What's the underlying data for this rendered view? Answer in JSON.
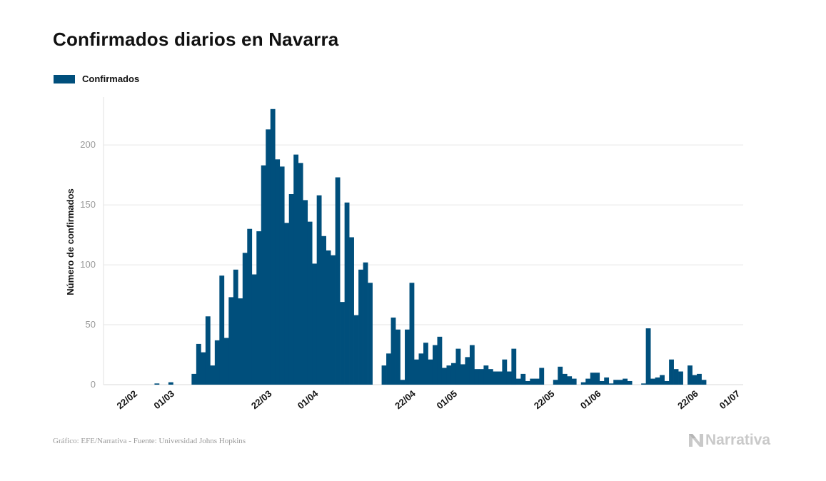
{
  "header": {
    "title": "Confirmados diarios en Navarra"
  },
  "legend": {
    "label": "Confirmados"
  },
  "footer": {
    "source": "Gráfico: EFE/Narrativa - Fuente: Universidad Johns Hopkins"
  },
  "brand": {
    "name": "Narrativa",
    "icon": "narrativa-logo-icon"
  },
  "colors": {
    "bar": "#004f7c",
    "grid": "#e6e6e6",
    "axis_text": "#999999",
    "brand": "#c9c9c9"
  },
  "chart_data": {
    "type": "bar",
    "title": "Confirmados diarios en Navarra",
    "xlabel": "",
    "ylabel": "Número de confirmados",
    "ylim": [
      0,
      240
    ],
    "yticks": [
      0,
      50,
      100,
      150,
      200
    ],
    "grid": true,
    "legend_position": "top-left",
    "x_start": "2020-02-16",
    "x_end": "2020-07-03",
    "xticks": [
      {
        "date": "2020-02-22",
        "label": "22/02"
      },
      {
        "date": "2020-03-01",
        "label": "01/03"
      },
      {
        "date": "2020-03-22",
        "label": "22/03"
      },
      {
        "date": "2020-04-01",
        "label": "01/04"
      },
      {
        "date": "2020-04-22",
        "label": "22/04"
      },
      {
        "date": "2020-05-01",
        "label": "01/05"
      },
      {
        "date": "2020-05-22",
        "label": "22/05"
      },
      {
        "date": "2020-06-01",
        "label": "01/06"
      },
      {
        "date": "2020-06-22",
        "label": "22/06"
      },
      {
        "date": "2020-07-01",
        "label": "01/07"
      }
    ],
    "series": [
      {
        "name": "Confirmados",
        "values": [
          [
            "2020-02-22",
            0
          ],
          [
            "2020-02-23",
            0
          ],
          [
            "2020-02-24",
            0
          ],
          [
            "2020-02-25",
            0
          ],
          [
            "2020-02-26",
            0
          ],
          [
            "2020-02-27",
            1
          ],
          [
            "2020-02-28",
            0
          ],
          [
            "2020-02-29",
            0
          ],
          [
            "2020-03-01",
            2
          ],
          [
            "2020-03-02",
            0
          ],
          [
            "2020-03-03",
            0
          ],
          [
            "2020-03-04",
            0
          ],
          [
            "2020-03-05",
            0
          ],
          [
            "2020-03-06",
            9
          ],
          [
            "2020-03-07",
            34
          ],
          [
            "2020-03-08",
            27
          ],
          [
            "2020-03-09",
            57
          ],
          [
            "2020-03-10",
            16
          ],
          [
            "2020-03-11",
            37
          ],
          [
            "2020-03-12",
            91
          ],
          [
            "2020-03-13",
            39
          ],
          [
            "2020-03-14",
            73
          ],
          [
            "2020-03-15",
            96
          ],
          [
            "2020-03-16",
            72
          ],
          [
            "2020-03-17",
            110
          ],
          [
            "2020-03-18",
            130
          ],
          [
            "2020-03-19",
            92
          ],
          [
            "2020-03-20",
            128
          ],
          [
            "2020-03-21",
            183
          ],
          [
            "2020-03-22",
            213
          ],
          [
            "2020-03-23",
            230
          ],
          [
            "2020-03-24",
            188
          ],
          [
            "2020-03-25",
            182
          ],
          [
            "2020-03-26",
            135
          ],
          [
            "2020-03-27",
            159
          ],
          [
            "2020-03-28",
            192
          ],
          [
            "2020-03-29",
            185
          ],
          [
            "2020-03-30",
            154
          ],
          [
            "2020-03-31",
            136
          ],
          [
            "2020-04-01",
            101
          ],
          [
            "2020-04-02",
            158
          ],
          [
            "2020-04-03",
            124
          ],
          [
            "2020-04-04",
            112
          ],
          [
            "2020-04-05",
            108
          ],
          [
            "2020-04-06",
            173
          ],
          [
            "2020-04-07",
            69
          ],
          [
            "2020-04-08",
            152
          ],
          [
            "2020-04-09",
            123
          ],
          [
            "2020-04-10",
            58
          ],
          [
            "2020-04-11",
            96
          ],
          [
            "2020-04-12",
            102
          ],
          [
            "2020-04-13",
            85
          ],
          [
            "2020-04-16",
            16
          ],
          [
            "2020-04-17",
            26
          ],
          [
            "2020-04-18",
            56
          ],
          [
            "2020-04-19",
            46
          ],
          [
            "2020-04-20",
            4
          ],
          [
            "2020-04-21",
            46
          ],
          [
            "2020-04-22",
            85
          ],
          [
            "2020-04-23",
            21
          ],
          [
            "2020-04-24",
            26
          ],
          [
            "2020-04-25",
            35
          ],
          [
            "2020-04-26",
            21
          ],
          [
            "2020-04-27",
            33
          ],
          [
            "2020-04-28",
            40
          ],
          [
            "2020-04-29",
            14
          ],
          [
            "2020-04-30",
            16
          ],
          [
            "2020-05-01",
            18
          ],
          [
            "2020-05-02",
            30
          ],
          [
            "2020-05-03",
            17
          ],
          [
            "2020-05-04",
            23
          ],
          [
            "2020-05-05",
            33
          ],
          [
            "2020-05-06",
            13
          ],
          [
            "2020-05-07",
            13
          ],
          [
            "2020-05-08",
            16
          ],
          [
            "2020-05-09",
            13
          ],
          [
            "2020-05-10",
            11
          ],
          [
            "2020-05-11",
            11
          ],
          [
            "2020-05-12",
            21
          ],
          [
            "2020-05-13",
            11
          ],
          [
            "2020-05-14",
            30
          ],
          [
            "2020-05-15",
            5
          ],
          [
            "2020-05-16",
            9
          ],
          [
            "2020-05-17",
            3
          ],
          [
            "2020-05-18",
            5
          ],
          [
            "2020-05-19",
            5
          ],
          [
            "2020-05-20",
            14
          ],
          [
            "2020-05-23",
            4
          ],
          [
            "2020-05-24",
            15
          ],
          [
            "2020-05-25",
            9
          ],
          [
            "2020-05-26",
            7
          ],
          [
            "2020-05-27",
            5
          ],
          [
            "2020-05-29",
            2
          ],
          [
            "2020-05-30",
            5
          ],
          [
            "2020-05-31",
            10
          ],
          [
            "2020-06-01",
            10
          ],
          [
            "2020-06-02",
            3
          ],
          [
            "2020-06-03",
            6
          ],
          [
            "2020-06-04",
            1
          ],
          [
            "2020-06-05",
            4
          ],
          [
            "2020-06-06",
            4
          ],
          [
            "2020-06-07",
            5
          ],
          [
            "2020-06-08",
            3
          ],
          [
            "2020-06-11",
            1
          ],
          [
            "2020-06-12",
            47
          ],
          [
            "2020-06-13",
            5
          ],
          [
            "2020-06-14",
            6
          ],
          [
            "2020-06-15",
            8
          ],
          [
            "2020-06-16",
            3
          ],
          [
            "2020-06-17",
            21
          ],
          [
            "2020-06-18",
            13
          ],
          [
            "2020-06-19",
            11
          ],
          [
            "2020-06-21",
            16
          ],
          [
            "2020-06-22",
            8
          ],
          [
            "2020-06-23",
            9
          ],
          [
            "2020-06-24",
            4
          ]
        ]
      }
    ]
  }
}
